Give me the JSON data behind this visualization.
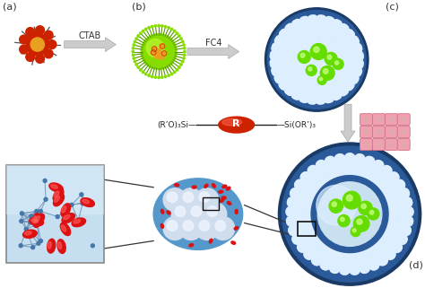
{
  "bg_color": "#ffffff",
  "label_a": "(a)",
  "label_b": "(b)",
  "label_c": "(c)",
  "label_d": "(d)",
  "ctab_label": "CTAB",
  "fc4_label": "FC4",
  "colors": {
    "arrow_gray": "#b0b0b0",
    "nanoparticle_gold": "#e8a020",
    "nanoparticle_red": "#cc2200",
    "green_sphere": "#66dd00",
    "green_sphere_dark": "#44aa00",
    "blue_outer": "#1a3a66",
    "blue_mid": "#2a5a9a",
    "blue_light": "#5599cc",
    "blue_inner": "#a8cce8",
    "blue_very_light": "#d0e8f8",
    "white_dot": "#ddeeff",
    "silica_green": "#88dd00",
    "silica_green_dark": "#559900",
    "red_ellipse": "#dd1111",
    "network_bg_top": "#b8d8f0",
    "network_bg_bot": "#7ab8e8",
    "pmo_blue": "#5599cc",
    "pmo_blue_dark": "#2255aa",
    "white_sphere": "#e8eef8",
    "pink_sheet": "#f0a0b0",
    "pink_sheet_line": "#cc7788",
    "connector_line": "#333333",
    "node_color": "#4477aa"
  }
}
